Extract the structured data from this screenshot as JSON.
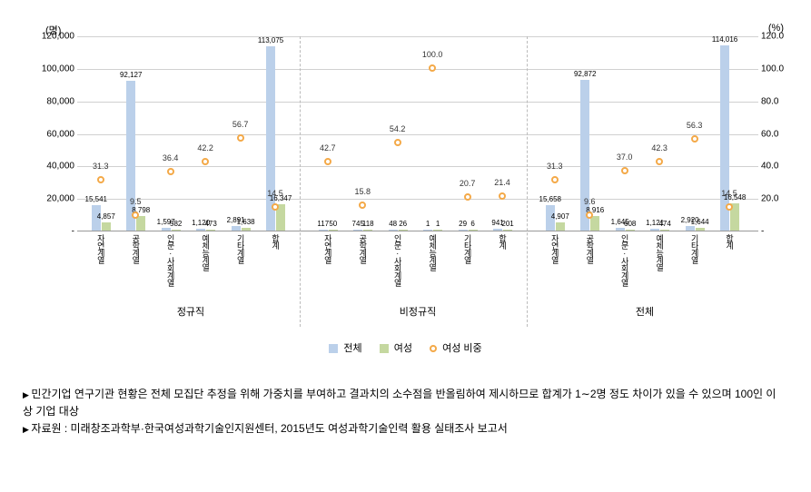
{
  "chart": {
    "type": "bar+line",
    "left_axis_label": "(명)",
    "right_axis_label": "(%)",
    "left_ylim": [
      0,
      120000
    ],
    "right_ylim": [
      0,
      120.0
    ],
    "ytick_step_left": 20000,
    "ytick_step_right": 20.0,
    "left_ticks": [
      "-",
      "20,000",
      "40,000",
      "60,000",
      "80,000",
      "100,000",
      "120,000"
    ],
    "right_ticks": [
      "-",
      "20.0",
      "40.0",
      "60.0",
      "80.0",
      "100.0",
      "120.0"
    ],
    "bar_color_total": "#bbd0ea",
    "bar_color_female": "#c5d8a0",
    "marker_color": "#f4a948",
    "grid_color": "#d0d0d0",
    "background_color": "#ffffff",
    "groups": [
      "정규직",
      "비정규직",
      "전체"
    ],
    "subcats": [
      "자연계열",
      "공학계열",
      "인문·사회계열",
      "예체능계열",
      "기타계열",
      "합계"
    ],
    "legend": {
      "total": "전체",
      "female": "여성",
      "ratio": "여성 비중"
    },
    "data": [
      {
        "g": 0,
        "c": 0,
        "total": 15541,
        "female": 4857,
        "ratio": 31.3
      },
      {
        "g": 0,
        "c": 1,
        "total": 92127,
        "female": 8798,
        "ratio": 9.5
      },
      {
        "g": 0,
        "c": 2,
        "total": 1597,
        "female": 582,
        "ratio": 36.4
      },
      {
        "g": 0,
        "c": 3,
        "total": 1120,
        "female": 473,
        "ratio": 42.2
      },
      {
        "g": 0,
        "c": 4,
        "total": 2891,
        "female": 1638,
        "ratio": 56.7
      },
      {
        "g": 0,
        "c": 5,
        "total": 113075,
        "female": 16347,
        "ratio": 14.5
      },
      {
        "g": 1,
        "c": 0,
        "total": 117,
        "female": 50,
        "ratio": 42.7
      },
      {
        "g": 1,
        "c": 1,
        "total": 745,
        "female": 118,
        "ratio": 15.8
      },
      {
        "g": 1,
        "c": 2,
        "total": 48,
        "female": 26,
        "ratio": 54.2
      },
      {
        "g": 1,
        "c": 3,
        "total": 1,
        "female": 1,
        "ratio": 100.0
      },
      {
        "g": 1,
        "c": 4,
        "total": 29,
        "female": 6,
        "ratio": 20.7
      },
      {
        "g": 1,
        "c": 5,
        "total": 941,
        "female": 201,
        "ratio": 21.4
      },
      {
        "g": 2,
        "c": 0,
        "total": 15658,
        "female": 4907,
        "ratio": 31.3
      },
      {
        "g": 2,
        "c": 1,
        "total": 92872,
        "female": 8916,
        "ratio": 9.6
      },
      {
        "g": 2,
        "c": 2,
        "total": 1645,
        "female": 608,
        "ratio": 37.0
      },
      {
        "g": 2,
        "c": 3,
        "total": 1121,
        "female": 474,
        "ratio": 42.3
      },
      {
        "g": 2,
        "c": 4,
        "total": 2920,
        "female": 1644,
        "ratio": 56.3
      },
      {
        "g": 2,
        "c": 5,
        "total": 114016,
        "female": 16548,
        "ratio": 14.5
      }
    ]
  },
  "notes": {
    "line1": "민간기업 연구기관 현황은 전체 모집단 추정을 위해 가중치를 부여하고 결과치의 소수점을 반올림하여 제시하므로 합계가 1∼2명 정도 차이가 있을 수 있으며 100인 이상 기업 대상",
    "line2": "자료원 : 미래창조과학부·한국여성과학기술인지원센터, 2015년도 여성과학기술인력 활용 실태조사 보고서"
  }
}
